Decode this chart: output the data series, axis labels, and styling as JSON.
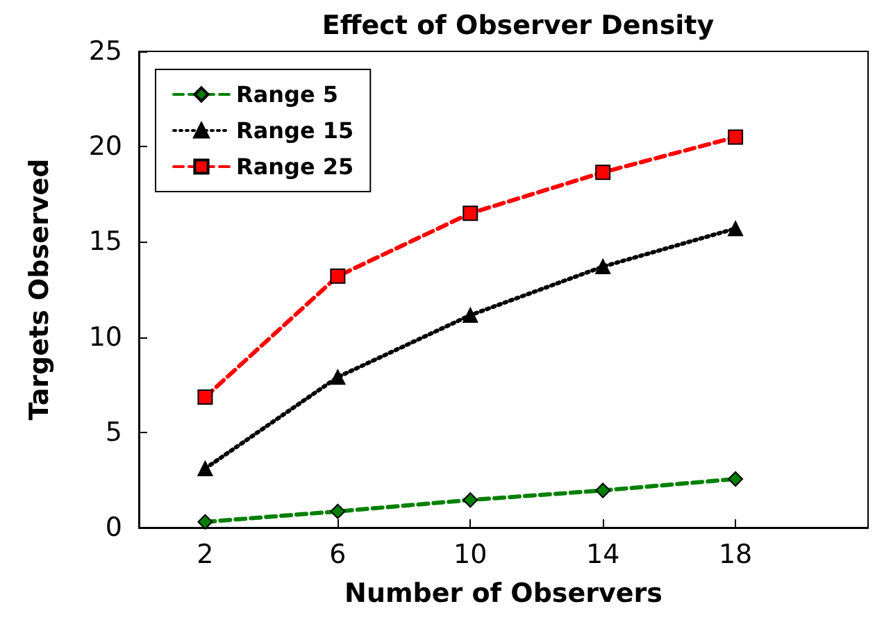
{
  "chart_data": {
    "type": "line",
    "title": "Effect of Observer Density",
    "xlabel": "Number of Observers",
    "ylabel": "Targets Observed",
    "x": [
      2,
      6,
      10,
      14,
      18
    ],
    "xlim": [
      0,
      22
    ],
    "xticks": [
      2,
      6,
      10,
      14,
      18
    ],
    "ylim": [
      0,
      25
    ],
    "yticks": [
      0,
      5,
      10,
      15,
      20,
      25
    ],
    "grid": false,
    "legend": "top left",
    "series": [
      {
        "name": "Range 5",
        "color": "#008000",
        "marker": "diamond",
        "line_style": "dashed",
        "values": [
          0.3,
          0.85,
          1.45,
          1.95,
          2.55
        ]
      },
      {
        "name": "Range 15",
        "color": "#000000",
        "marker": "triangle",
        "line_style": "dotted",
        "values": [
          3.1,
          7.9,
          11.15,
          13.7,
          15.7
        ]
      },
      {
        "name": "Range 25",
        "color": "#ff0000",
        "marker": "square",
        "line_style": "dashed",
        "values": [
          6.85,
          13.2,
          16.5,
          18.65,
          20.5
        ]
      }
    ]
  }
}
